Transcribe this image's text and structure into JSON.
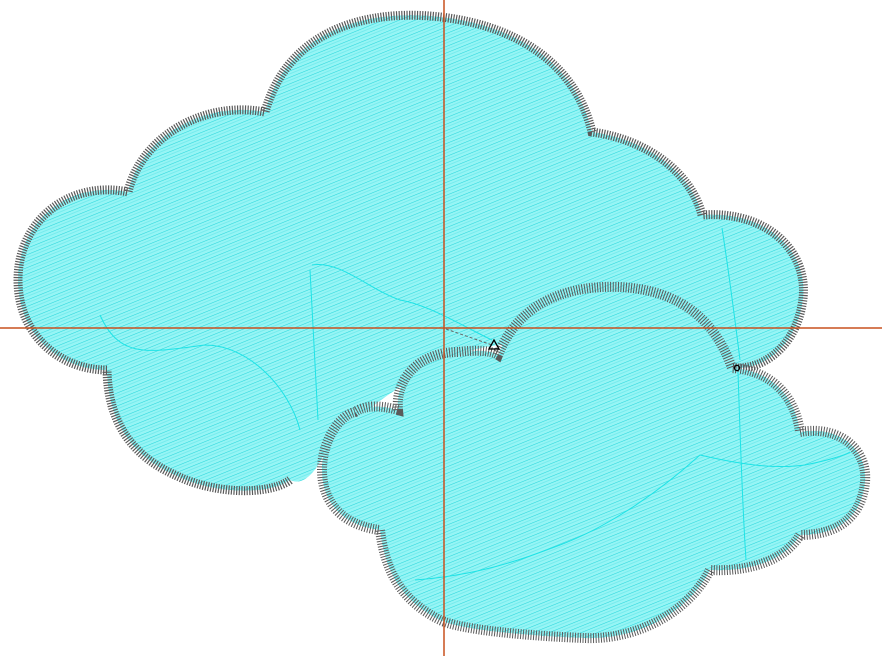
{
  "canvas": {
    "background": "#ffffff"
  },
  "design": {
    "fill_color": "#96f5f5",
    "fill_stitch_color": "#2ad6dc",
    "border_color": "#5a5a5a",
    "underlay_color": "#1fe3e6",
    "objects": [
      {
        "name": "large-cloud",
        "type": "satin-border-with-fill"
      },
      {
        "name": "small-cloud",
        "type": "satin-border-with-fill"
      }
    ]
  },
  "guides": {
    "color": "#c8501e",
    "crosshair": "origin"
  },
  "markers": {
    "start_point_icon": "triangle-start-marker",
    "end_point_icon": "circle-end-marker"
  }
}
